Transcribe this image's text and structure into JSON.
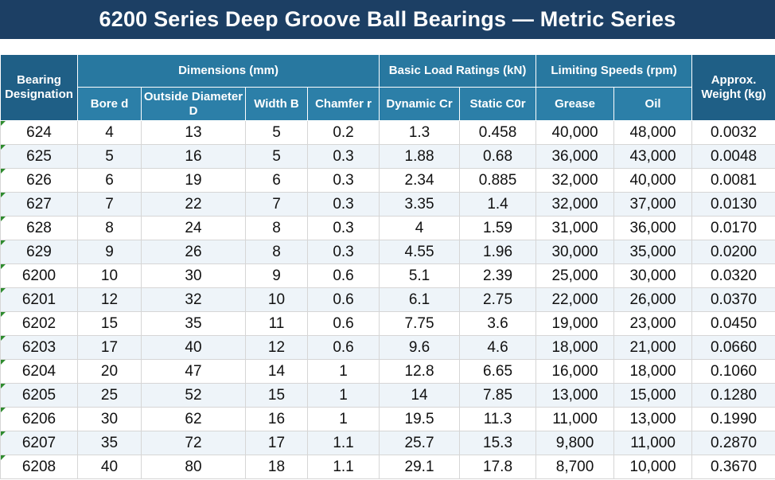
{
  "title": "6200 Series Deep Groove Ball Bearings — Metric Series",
  "headers": {
    "designation": "Bearing Designation",
    "dimensions": "Dimensions (mm)",
    "load_ratings": "Basic Load Ratings (kN)",
    "speeds": "Limiting Speeds (rpm)",
    "weight": "Approx. Weight (kg)",
    "bore": "Bore d",
    "outside_diameter": "Outside Diameter D",
    "width": "Width B",
    "chamfer": "Chamfer r",
    "dynamic": "Dynamic Cr",
    "static": "Static C0r",
    "grease": "Grease",
    "oil": "Oil"
  },
  "rows": [
    [
      "624",
      "4",
      "13",
      "5",
      "0.2",
      "1.3",
      "0.458",
      "40,000",
      "48,000",
      "0.0032"
    ],
    [
      "625",
      "5",
      "16",
      "5",
      "0.3",
      "1.88",
      "0.68",
      "36,000",
      "43,000",
      "0.0048"
    ],
    [
      "626",
      "6",
      "19",
      "6",
      "0.3",
      "2.34",
      "0.885",
      "32,000",
      "40,000",
      "0.0081"
    ],
    [
      "627",
      "7",
      "22",
      "7",
      "0.3",
      "3.35",
      "1.4",
      "32,000",
      "37,000",
      "0.0130"
    ],
    [
      "628",
      "8",
      "24",
      "8",
      "0.3",
      "4",
      "1.59",
      "31,000",
      "36,000",
      "0.0170"
    ],
    [
      "629",
      "9",
      "26",
      "8",
      "0.3",
      "4.55",
      "1.96",
      "30,000",
      "35,000",
      "0.0200"
    ],
    [
      "6200",
      "10",
      "30",
      "9",
      "0.6",
      "5.1",
      "2.39",
      "25,000",
      "30,000",
      "0.0320"
    ],
    [
      "6201",
      "12",
      "32",
      "10",
      "0.6",
      "6.1",
      "2.75",
      "22,000",
      "26,000",
      "0.0370"
    ],
    [
      "6202",
      "15",
      "35",
      "11",
      "0.6",
      "7.75",
      "3.6",
      "19,000",
      "23,000",
      "0.0450"
    ],
    [
      "6203",
      "17",
      "40",
      "12",
      "0.6",
      "9.6",
      "4.6",
      "18,000",
      "21,000",
      "0.0660"
    ],
    [
      "6204",
      "20",
      "47",
      "14",
      "1",
      "12.8",
      "6.65",
      "16,000",
      "18,000",
      "0.1060"
    ],
    [
      "6205",
      "25",
      "52",
      "15",
      "1",
      "14",
      "7.85",
      "13,000",
      "15,000",
      "0.1280"
    ],
    [
      "6206",
      "30",
      "62",
      "16",
      "1",
      "19.5",
      "11.3",
      "11,000",
      "13,000",
      "0.1990"
    ],
    [
      "6207",
      "35",
      "72",
      "17",
      "1.1",
      "25.7",
      "15.3",
      "9,800",
      "11,000",
      "0.2870"
    ],
    [
      "6208",
      "40",
      "80",
      "18",
      "1.1",
      "29.1",
      "17.8",
      "8,700",
      "10,000",
      "0.3670"
    ]
  ],
  "colors": {
    "title_bg": "#1c3f64",
    "header_bg": "#2878a0",
    "row_alt_bg": "#eef4f9",
    "corner_marker": "#2e8b2e"
  }
}
